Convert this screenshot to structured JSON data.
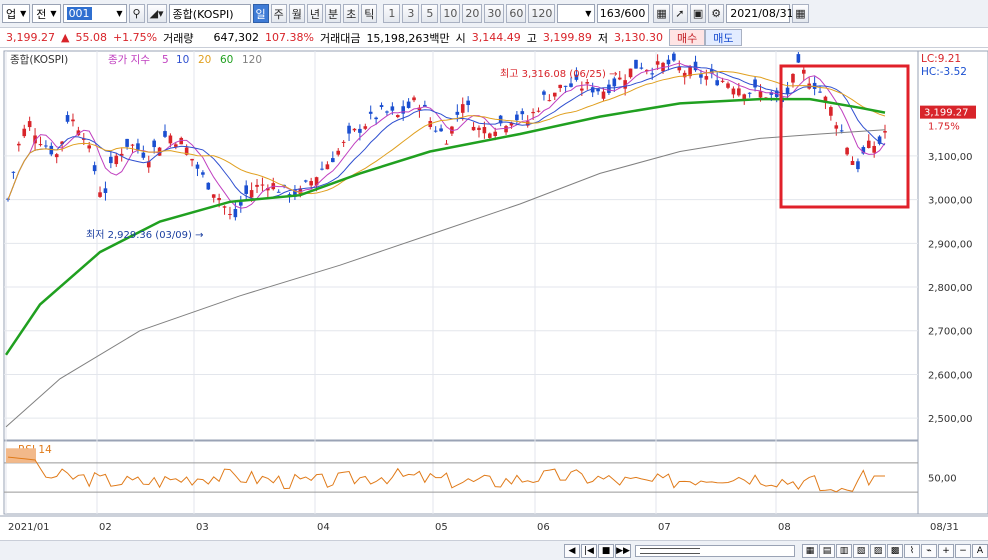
{
  "toolbar": {
    "market": "업",
    "type": "전",
    "code": "001",
    "name": "종합(KOSPI)",
    "periods": [
      "일",
      "주",
      "월",
      "년",
      "분",
      "초",
      "틱"
    ],
    "selected_period": "일",
    "intervals": [
      "1",
      "3",
      "5",
      "10",
      "20",
      "30",
      "60",
      "120"
    ],
    "count": "163/600",
    "date": "2021/08/31"
  },
  "quote": {
    "price": "3,199.27",
    "arrow": "▲",
    "change": "55.08",
    "rate": "+1.75%",
    "volume_label": "거래량",
    "volume": "647,302",
    "volume_rate": "107.38%",
    "amount_label": "거래대금",
    "amount": "15,198,263백만",
    "open_label": "시",
    "open": "3,144.49",
    "high_label": "고",
    "high": "3,199.89",
    "low_label": "저",
    "low": "3,130.30",
    "buy_label": "매수",
    "sell_label": "매도"
  },
  "chart_data": {
    "type": "candlestick",
    "title": "종합(KOSPI)",
    "legend": {
      "label": "종가 지수",
      "periods": [
        "5",
        "10",
        "20",
        "60",
        "120"
      ],
      "colors": [
        "#c040c0",
        "#3050d0",
        "#e0a020",
        "#20a020",
        "#808080"
      ]
    },
    "y_ticks": [
      "3,100,00",
      "3,000,00",
      "2,900,00",
      "2,800,00",
      "2,700,00",
      "2,600,00",
      "2,500,00"
    ],
    "y_range": [
      2450,
      3340
    ],
    "x_ticks": [
      "2021/01",
      "02",
      "03",
      "04",
      "05",
      "06",
      "07",
      "08"
    ],
    "x_last": "08/31",
    "lc": "LC:9.21",
    "hc": "HC:-3.52",
    "current_price": "3,199.27",
    "current_rate": "1.75%",
    "max_annotation": "최고 3,316.08 (06/25)",
    "min_annotation": "최저 2,929.36 (03/09)",
    "rsi": {
      "label": "RSI 14",
      "tick": "50,00",
      "range": [
        0,
        100
      ]
    },
    "colors": {
      "up": "#d8242a",
      "down": "#1b4fd0",
      "highlight": "#e0202a"
    }
  }
}
